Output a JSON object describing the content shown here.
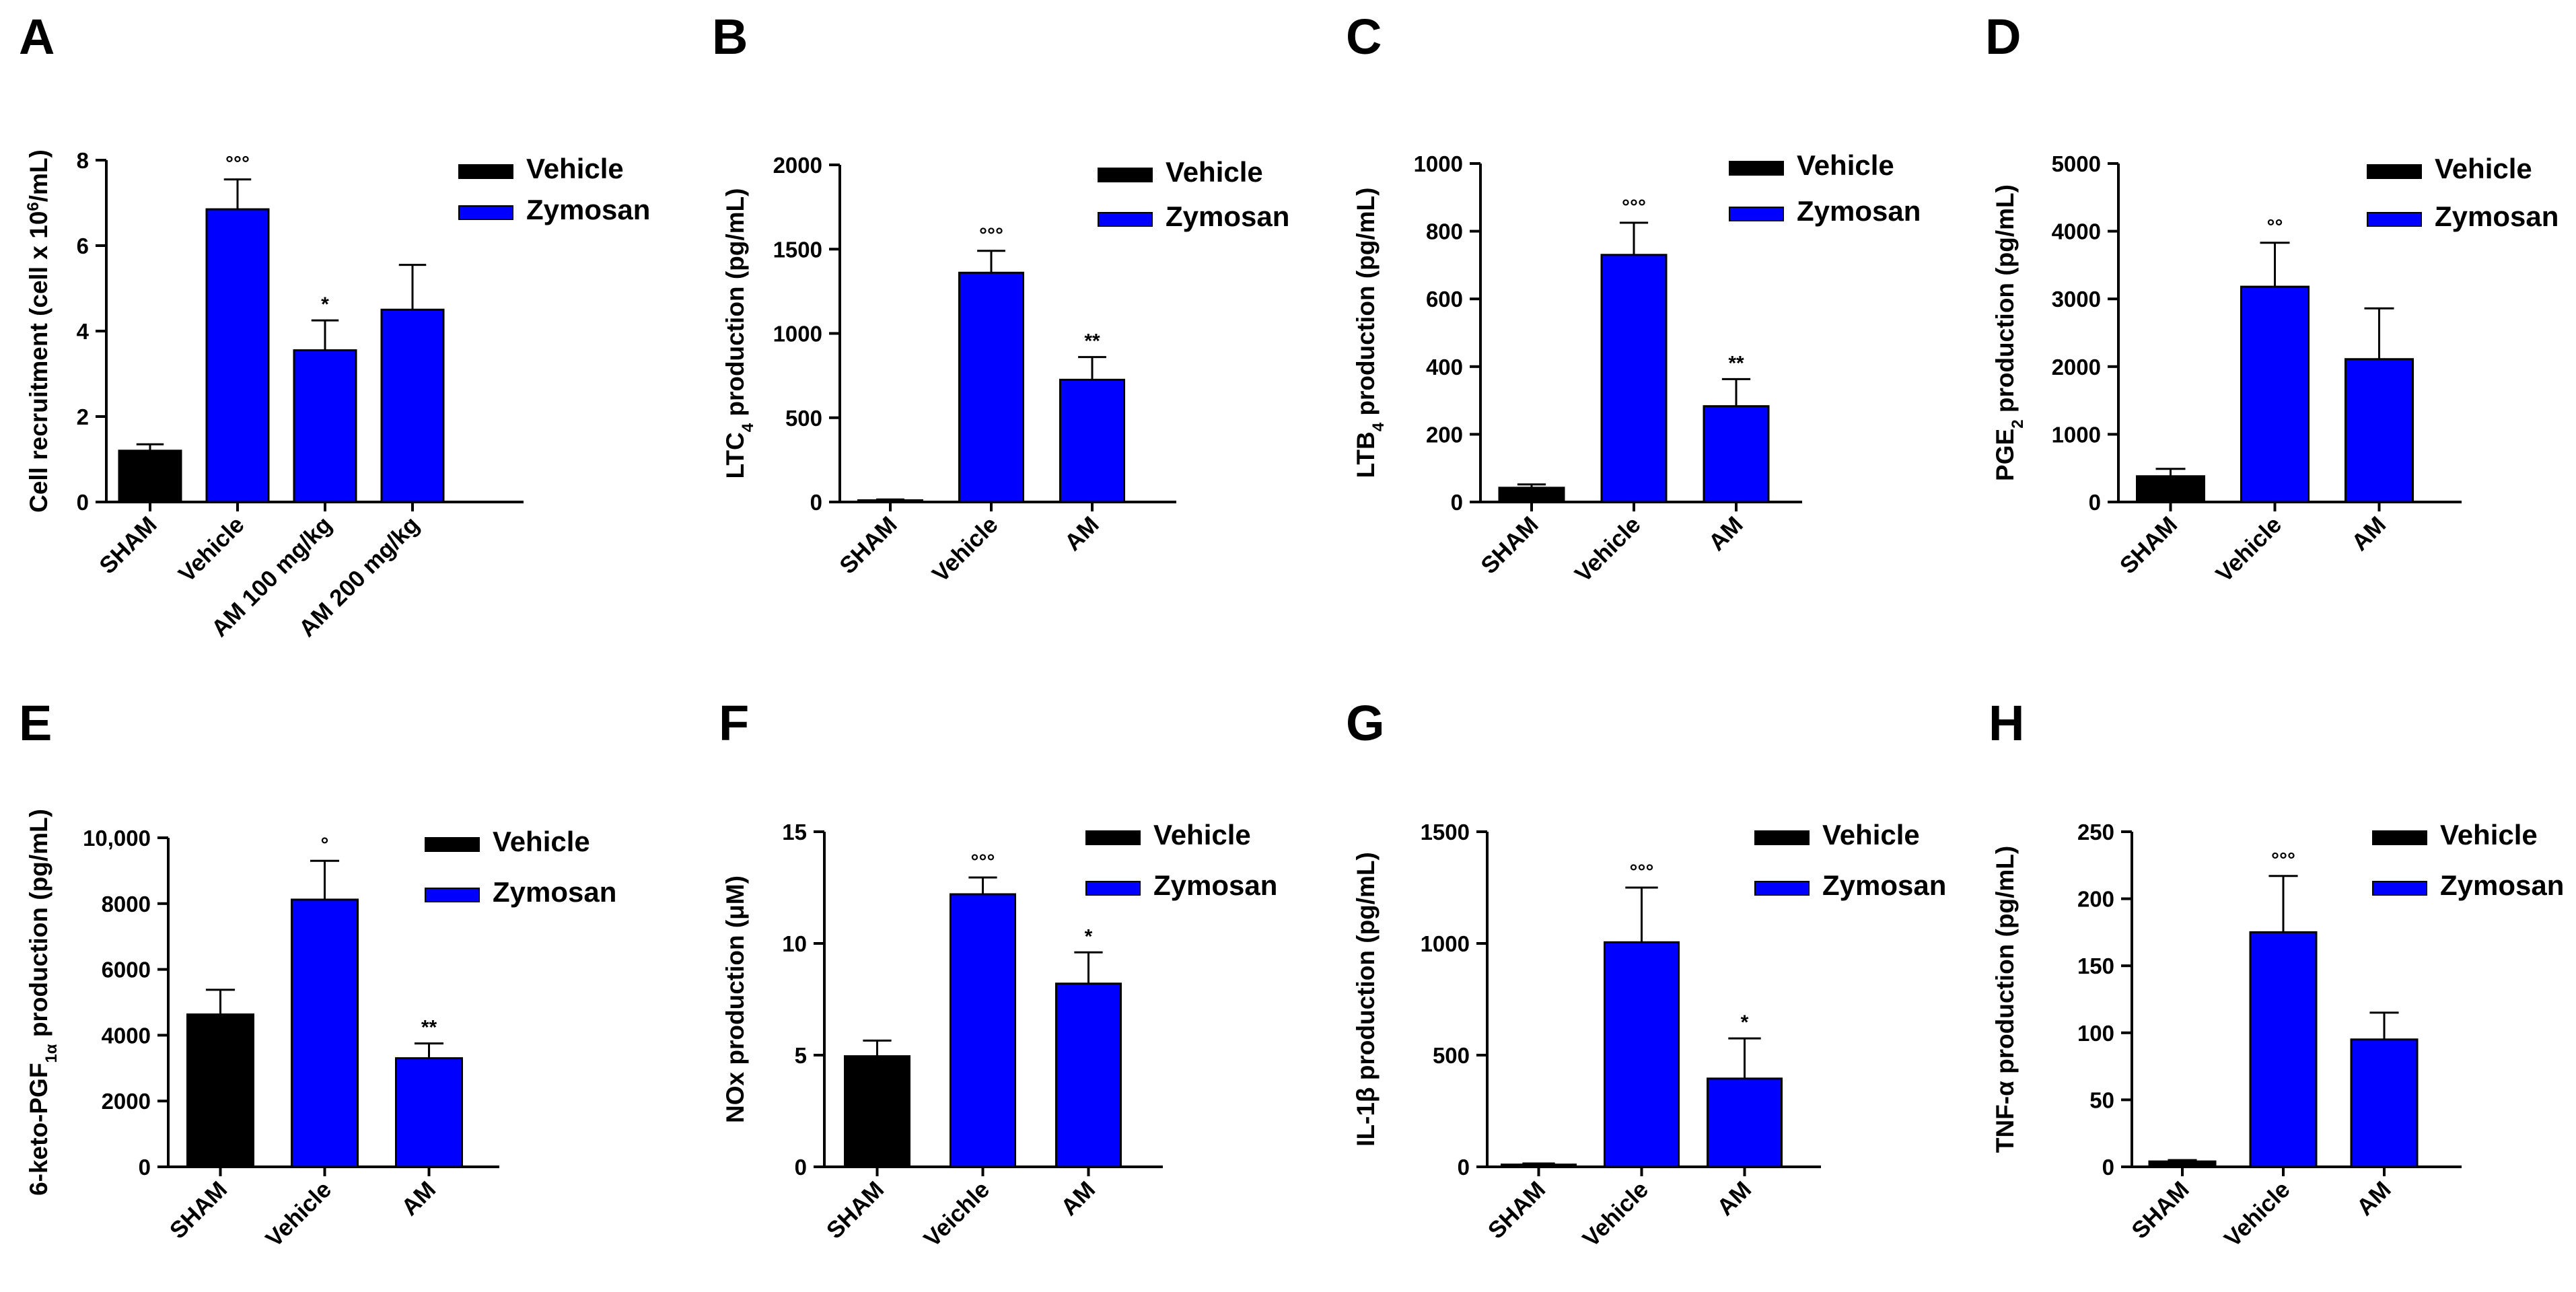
{
  "colors": {
    "control": "#000000",
    "treated": "#0000ff",
    "axis": "#000000"
  },
  "chart_data": [
    {
      "type": "bar",
      "panel": "A",
      "ylabel": [
        {
          "t": "Cell recruitment (cell x 10"
        },
        {
          "t": "6",
          "sup": true
        },
        {
          "t": "/mL)"
        }
      ],
      "ylim": [
        0,
        8
      ],
      "ticks": [
        0,
        2,
        4,
        6,
        8
      ],
      "tick_labels": [
        "0",
        "2",
        "4",
        "6",
        "8"
      ],
      "categories": [
        "SHAM",
        "Vehicle",
        "AM 100 mg/kg",
        "AM 200 mg/kg"
      ],
      "values": [
        1.2,
        6.85,
        3.55,
        4.5
      ],
      "errors": [
        0.15,
        0.7,
        0.7,
        1.05
      ],
      "groups": [
        "Vehicle",
        "Zymosan",
        "Zymosan",
        "Zymosan"
      ],
      "labels": [
        "",
        "°°°",
        "*",
        ""
      ],
      "legend": [
        "Vehicle",
        "Zymosan"
      ]
    },
    {
      "type": "bar",
      "panel": "B",
      "ylabel": [
        {
          "t": "LTC"
        },
        {
          "t": "4",
          "sub": true
        },
        {
          "t": " production (pg/mL)"
        }
      ],
      "ylim": [
        0,
        2000
      ],
      "ticks": [
        0,
        500,
        1000,
        1500,
        2000
      ],
      "tick_labels": [
        "0",
        "500",
        "1000",
        "1500",
        "2000"
      ],
      "categories": [
        "SHAM",
        "Vehicle",
        "AM"
      ],
      "values": [
        10,
        1360,
        725
      ],
      "errors": [
        5,
        130,
        135
      ],
      "groups": [
        "Vehicle",
        "Zymosan",
        "Zymosan"
      ],
      "labels": [
        "",
        "°°°",
        "**"
      ],
      "legend": [
        "Vehicle",
        "Zymosan"
      ]
    },
    {
      "type": "bar",
      "panel": "C",
      "ylabel": [
        {
          "t": "LTB"
        },
        {
          "t": "4",
          "sub": true
        },
        {
          "t": " production (pg/mL)"
        }
      ],
      "ylim": [
        0,
        1000
      ],
      "ticks": [
        0,
        200,
        400,
        600,
        800,
        1000
      ],
      "tick_labels": [
        "0",
        "200",
        "400",
        "600",
        "800",
        "1000"
      ],
      "categories": [
        "SHAM",
        "Vehicle",
        "AM"
      ],
      "values": [
        42,
        730,
        283
      ],
      "errors": [
        10,
        95,
        80
      ],
      "groups": [
        "Vehicle",
        "Zymosan",
        "Zymosan"
      ],
      "labels": [
        "",
        "°°°",
        "**"
      ],
      "legend": [
        "Vehicle",
        "Zymosan"
      ]
    },
    {
      "type": "bar",
      "panel": "D",
      "ylabel": [
        {
          "t": "PGE"
        },
        {
          "t": "2",
          "sub": true
        },
        {
          "t": " production (pg/mL)"
        }
      ],
      "ylim": [
        0,
        5000
      ],
      "ticks": [
        0,
        1000,
        2000,
        3000,
        4000,
        5000
      ],
      "tick_labels": [
        "0",
        "1000",
        "2000",
        "3000",
        "4000",
        "5000"
      ],
      "categories": [
        "SHAM",
        "Vehicle",
        "AM"
      ],
      "values": [
        380,
        3180,
        2110
      ],
      "errors": [
        110,
        650,
        750
      ],
      "groups": [
        "Vehicle",
        "Zymosan",
        "Zymosan"
      ],
      "labels": [
        "",
        "°°",
        ""
      ],
      "legend": [
        "Vehicle",
        "Zymosan"
      ]
    },
    {
      "type": "bar",
      "panel": "E",
      "ylabel": [
        {
          "t": "6-keto-PGF"
        },
        {
          "t": "1α",
          "sub": true
        },
        {
          "t": " production (pg/mL)"
        }
      ],
      "ylim": [
        0,
        10000
      ],
      "ticks": [
        0,
        2000,
        4000,
        6000,
        8000,
        10000
      ],
      "tick_labels": [
        "0",
        "2000",
        "4000",
        "6000",
        "8000",
        "10,000"
      ],
      "categories": [
        "SHAM",
        "Vehicle",
        "AM"
      ],
      "values": [
        4630,
        8120,
        3300
      ],
      "errors": [
        750,
        1180,
        450
      ],
      "groups": [
        "Vehicle",
        "Zymosan",
        "Zymosan"
      ],
      "labels": [
        "",
        "°",
        "**"
      ],
      "legend": [
        "Vehicle",
        "Zymosan"
      ]
    },
    {
      "type": "bar",
      "panel": "F",
      "ylabel": [
        {
          "t": "NOx production (μM)"
        }
      ],
      "ylim": [
        0,
        15
      ],
      "ticks": [
        0,
        5,
        10,
        15
      ],
      "tick_labels": [
        "0",
        "5",
        "10",
        "15"
      ],
      "categories": [
        "SHAM",
        "Veichle",
        "AM"
      ],
      "values": [
        4.95,
        12.2,
        8.2
      ],
      "errors": [
        0.7,
        0.75,
        1.4
      ],
      "groups": [
        "Vehicle",
        "Zymosan",
        "Zymosan"
      ],
      "labels": [
        "",
        "°°°",
        "*"
      ],
      "legend": [
        "Vehicle",
        "Zymosan"
      ]
    },
    {
      "type": "bar",
      "panel": "G",
      "ylabel": [
        {
          "t": "IL-1β production (pg/mL)"
        }
      ],
      "ylim": [
        0,
        1500
      ],
      "ticks": [
        0,
        500,
        1000,
        1500
      ],
      "tick_labels": [
        "0",
        "500",
        "1000",
        "1500"
      ],
      "categories": [
        "SHAM",
        "Vehicle",
        "AM"
      ],
      "values": [
        10,
        1005,
        395
      ],
      "errors": [
        5,
        245,
        180
      ],
      "groups": [
        "Vehicle",
        "Zymosan",
        "Zymosan"
      ],
      "labels": [
        "",
        "°°°",
        "*"
      ],
      "legend": [
        "Vehicle",
        "Zymosan"
      ]
    },
    {
      "type": "bar",
      "panel": "H",
      "ylabel": [
        {
          "t": "TNF-α production (pg/mL)"
        }
      ],
      "ylim": [
        0,
        250
      ],
      "ticks": [
        0,
        50,
        100,
        150,
        200,
        250
      ],
      "tick_labels": [
        "0",
        "50",
        "100",
        "150",
        "200",
        "250"
      ],
      "categories": [
        "SHAM",
        "Vehicle",
        "AM"
      ],
      "values": [
        4,
        175,
        95
      ],
      "errors": [
        1,
        42,
        20
      ],
      "groups": [
        "Vehicle",
        "Zymosan",
        "Zymosan"
      ],
      "labels": [
        "",
        "°°°",
        ""
      ],
      "legend": [
        "Vehicle",
        "Zymosan"
      ]
    }
  ]
}
